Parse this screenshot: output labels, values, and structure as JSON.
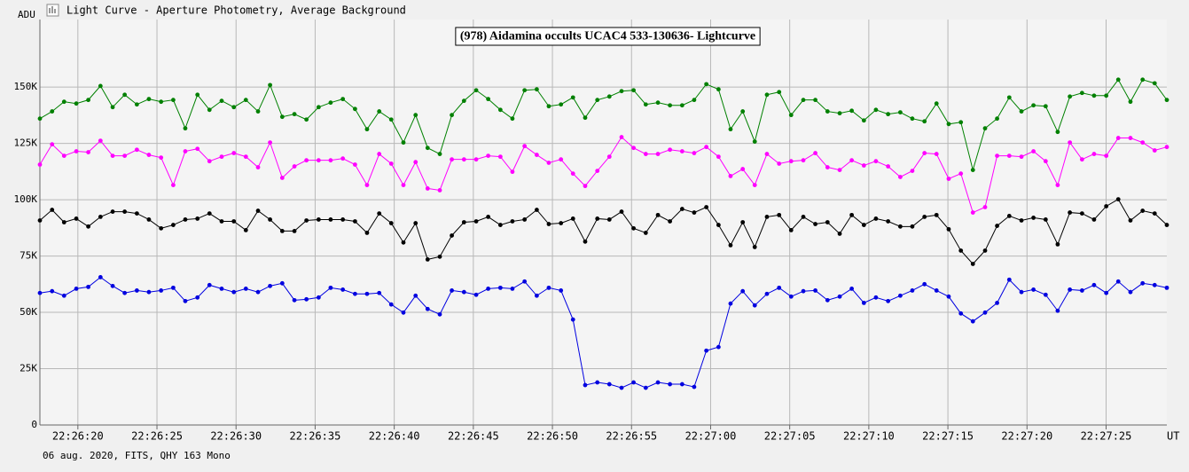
{
  "window_title": "Light Curve - Aperture Photometry, Average Background",
  "chart_data": {
    "type": "line",
    "title": "(978) Aidamina occults UCAC4 533-130636- Lightcurve",
    "y_label": "ADU",
    "x_label": "UT",
    "footer": "06 aug. 2020, FITS, QHY 163 Mono",
    "grid": true,
    "xlim": [
      17.6,
      88.84
    ],
    "ylim": [
      0,
      180000
    ],
    "xticks": [
      {
        "value": 20,
        "label": "22:26:20"
      },
      {
        "value": 25,
        "label": "22:26:25"
      },
      {
        "value": 30,
        "label": "22:26:30"
      },
      {
        "value": 35,
        "label": "22:26:35"
      },
      {
        "value": 40,
        "label": "22:26:40"
      },
      {
        "value": 45,
        "label": "22:26:45"
      },
      {
        "value": 50,
        "label": "22:26:50"
      },
      {
        "value": 55,
        "label": "22:26:55"
      },
      {
        "value": 60,
        "label": "22:27:00"
      },
      {
        "value": 65,
        "label": "22:27:05"
      },
      {
        "value": 70,
        "label": "22:27:10"
      },
      {
        "value": 75,
        "label": "22:27:15"
      },
      {
        "value": 80,
        "label": "22:27:20"
      },
      {
        "value": 85,
        "label": "22:27:25"
      }
    ],
    "yticks": [
      0,
      {
        "value": 25000,
        "label": "25K"
      },
      {
        "value": 50000,
        "label": "50K"
      },
      {
        "value": 75000,
        "label": "75K"
      },
      {
        "value": 100000,
        "label": "100K"
      },
      {
        "value": 125000,
        "label": "125K"
      },
      {
        "value": 150000,
        "label": "150K"
      }
    ],
    "x": [
      17.6,
      18.37,
      19.13,
      19.9,
      20.66,
      21.43,
      22.2,
      22.96,
      23.73,
      24.49,
      25.26,
      26.03,
      26.79,
      27.56,
      28.32,
      29.09,
      29.86,
      30.62,
      31.39,
      32.15,
      32.92,
      33.69,
      34.45,
      35.22,
      35.98,
      36.75,
      37.52,
      38.28,
      39.05,
      39.81,
      40.58,
      41.35,
      42.11,
      42.88,
      43.64,
      44.41,
      45.18,
      45.94,
      46.71,
      47.47,
      48.24,
      49.01,
      49.77,
      50.54,
      51.3,
      52.07,
      52.84,
      53.6,
      54.37,
      55.13,
      55.9,
      56.67,
      57.43,
      58.2,
      58.96,
      59.73,
      60.5,
      61.26,
      62.03,
      62.79,
      63.56,
      64.33,
      65.09,
      65.86,
      66.62,
      67.39,
      68.16,
      68.92,
      69.69,
      70.45,
      71.22,
      71.99,
      72.75,
      73.52,
      74.28,
      75.05,
      75.82,
      76.58,
      77.35,
      78.11,
      78.88,
      79.65,
      80.41,
      81.18,
      81.94,
      82.71,
      83.48,
      84.24,
      85.01,
      85.77,
      86.54,
      87.31,
      88.07,
      88.84
    ],
    "series": [
      {
        "color": "#0000e0",
        "values": [
          58600,
          59400,
          57400,
          60500,
          61300,
          65600,
          61700,
          58600,
          59700,
          59000,
          59700,
          60900,
          55000,
          56600,
          62100,
          60500,
          59000,
          60500,
          59000,
          61700,
          62900,
          55400,
          55800,
          56600,
          60900,
          60100,
          58200,
          58200,
          58600,
          53500,
          49900,
          57400,
          51500,
          49100,
          59700,
          59000,
          57800,
          60500,
          60900,
          60500,
          63700,
          57400,
          60900,
          59700,
          46800,
          17700,
          18900,
          18100,
          16500,
          18900,
          16500,
          18900,
          18100,
          18100,
          16900,
          33000,
          34600,
          53900,
          59400,
          53100,
          58200,
          60900,
          57000,
          59400,
          59700,
          55400,
          57000,
          60500,
          54200,
          56600,
          55000,
          57400,
          59700,
          62500,
          59700,
          57000,
          49500,
          46000,
          49900,
          54200,
          64500,
          59000,
          60100,
          57800,
          50700,
          60100,
          59700,
          62100,
          58600,
          63700,
          59000,
          62900,
          62100,
          60900
        ]
      },
      {
        "color": "#000000",
        "values": [
          90800,
          95500,
          90000,
          91600,
          88100,
          92400,
          94700,
          94700,
          93900,
          91200,
          87300,
          88800,
          91200,
          91600,
          93900,
          90400,
          90400,
          86500,
          95100,
          91200,
          86100,
          86100,
          90800,
          91200,
          91200,
          91200,
          90400,
          85300,
          93900,
          89600,
          81000,
          89600,
          73500,
          74700,
          84100,
          90000,
          90400,
          92400,
          88800,
          90400,
          91200,
          95500,
          89200,
          89600,
          91600,
          81400,
          91600,
          91200,
          94700,
          87300,
          85300,
          93200,
          90400,
          95900,
          94300,
          96700,
          88800,
          79800,
          90000,
          79000,
          92400,
          93200,
          86500,
          92400,
          89200,
          90000,
          84900,
          93200,
          88800,
          91600,
          90400,
          88100,
          88100,
          92400,
          93200,
          86900,
          77400,
          71500,
          77400,
          88400,
          92800,
          90800,
          92000,
          91200,
          80200,
          94300,
          93900,
          91200,
          97100,
          100200,
          90800,
          95100,
          93900,
          88800
        ]
      },
      {
        "color": "#ff00ff",
        "values": [
          115600,
          124600,
          119500,
          121500,
          121100,
          126200,
          119500,
          119500,
          122200,
          119900,
          118700,
          106500,
          121500,
          122600,
          117100,
          119100,
          120700,
          119100,
          114400,
          125400,
          109700,
          114800,
          117500,
          117500,
          117500,
          118300,
          115600,
          106500,
          120300,
          116000,
          106500,
          116700,
          105000,
          104200,
          117900,
          117900,
          117900,
          119500,
          119100,
          112400,
          123800,
          119900,
          116400,
          117900,
          111600,
          106100,
          112800,
          119100,
          127800,
          123000,
          120300,
          120300,
          122200,
          121500,
          120700,
          123400,
          119100,
          110500,
          113600,
          106500,
          120300,
          116000,
          117100,
          117500,
          120700,
          114400,
          113200,
          117500,
          115200,
          117100,
          114800,
          110100,
          112800,
          120700,
          120300,
          109300,
          111600,
          94300,
          96700,
          119500,
          119500,
          119100,
          121500,
          117100,
          106500,
          125400,
          117900,
          120300,
          119500,
          127400,
          127400,
          125400,
          121900,
          123400
        ]
      },
      {
        "color": "#008000",
        "values": [
          136000,
          139200,
          143500,
          142700,
          144300,
          150500,
          141100,
          146600,
          142300,
          144700,
          143500,
          144300,
          131700,
          146600,
          139900,
          143900,
          141100,
          144300,
          139200,
          150900,
          136800,
          138000,
          135600,
          141100,
          143100,
          144700,
          140300,
          131300,
          139200,
          135600,
          125400,
          137600,
          123000,
          120300,
          137600,
          143900,
          148600,
          144700,
          139900,
          136000,
          148600,
          149000,
          141500,
          142300,
          145400,
          136400,
          144300,
          145800,
          148200,
          148600,
          142300,
          143100,
          141900,
          141900,
          144300,
          151300,
          149000,
          131300,
          139200,
          125800,
          146600,
          147800,
          137600,
          144300,
          144300,
          139200,
          138400,
          139500,
          135200,
          139900,
          138000,
          138800,
          136000,
          134800,
          142700,
          133600,
          134400,
          113200,
          131700,
          136000,
          145400,
          139200,
          141900,
          141500,
          130100,
          145800,
          147400,
          146200,
          146200,
          153300,
          143500,
          153300,
          151700,
          144300
        ]
      }
    ]
  }
}
